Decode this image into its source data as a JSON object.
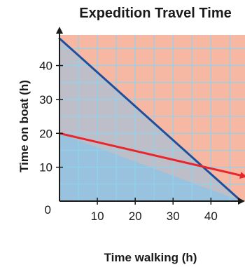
{
  "chart_data": {
    "type": "line",
    "title": "Expedition Travel Time",
    "xlabel": "Time walking (h)",
    "ylabel": "Time on boat (h)",
    "xlim": [
      0,
      49
    ],
    "ylim": [
      0,
      49
    ],
    "x_ticks": [
      10,
      20,
      30,
      40
    ],
    "y_ticks": [
      10,
      20,
      30,
      40
    ],
    "origin_label": "0",
    "grid": true,
    "grid_step": 5,
    "colors": {
      "background_region": "#f7b8a3",
      "grid": "#8ed3ee",
      "shaded_region": "#8ec3e6",
      "blue_line": "#1f4f9c",
      "red_line": "#e8262b",
      "axis": "#1a1a1a"
    },
    "series": [
      {
        "points": [
          [
            0,
            48
          ],
          [
            48,
            0
          ]
        ],
        "color": "#1f4f9c"
      },
      {
        "points": [
          [
            0,
            20
          ],
          [
            49,
            7.3
          ]
        ],
        "color": "#e8262b",
        "arrow_end": true
      }
    ],
    "shaded_region": {
      "below_line": [
        [
          0,
          48
        ],
        [
          48,
          0
        ]
      ],
      "min_y_line": [
        [
          0,
          20
        ],
        [
          48,
          0
        ]
      ]
    }
  }
}
